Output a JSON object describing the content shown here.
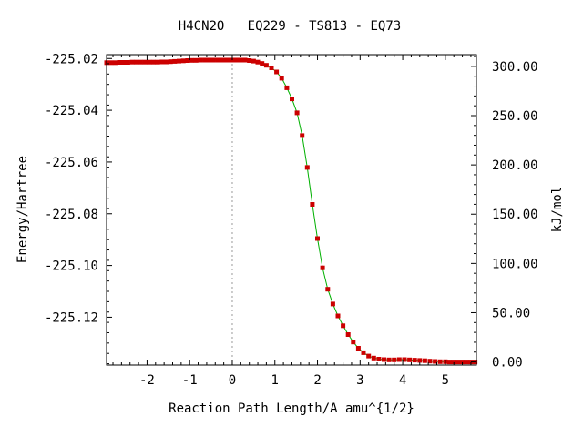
{
  "chart_data": {
    "type": "line",
    "title": "H4CN2O   EQ229 - TS813 - EQ73",
    "xlabel": "Reaction Path Length/A amu^{1/2}",
    "ylabel": "Energy/Hartree",
    "y2label": "kJ/mol",
    "xlim": [
      -2.95,
      5.73
    ],
    "ylim": [
      -225.1385,
      -225.0185
    ],
    "x_ticks": [
      -2,
      -1,
      0,
      1,
      2,
      3,
      4,
      5
    ],
    "x_tick_labels": [
      "-2",
      "-1",
      "0",
      "1",
      "2",
      "3",
      "4",
      "5"
    ],
    "y_ticks": [
      -225.02,
      -225.04,
      -225.06,
      -225.08,
      -225.1,
      -225.12
    ],
    "y_tick_labels": [
      "-225.02",
      "-225.04",
      "-225.06",
      "-225.08",
      "-225.10",
      "-225.12"
    ],
    "y2_ticks": [
      0,
      50,
      100,
      150,
      200,
      250,
      300
    ],
    "y2_tick_labels": [
      "0.00",
      "50.00",
      "100.00",
      "150.00",
      "200.00",
      "250.00",
      "300.00"
    ],
    "y2_reference_energy": -225.1373,
    "y2_conversion_kJ_per_Hartree": 2625.5,
    "ts_marker_x": 0,
    "grid": false,
    "line_color": "#00b000",
    "marker_color": "#cc0000",
    "ts_line_color": "#999999",
    "series": [
      {
        "x": [
          -2.95,
          -2.85,
          -2.75,
          -2.65,
          -2.55,
          -2.45,
          -2.35,
          -2.25,
          -2.15,
          -2.05,
          -1.95,
          -1.85,
          -1.75,
          -1.65,
          -1.55,
          -1.45,
          -1.35,
          -1.25,
          -1.15,
          -1.05,
          -0.95,
          -0.85,
          -0.75,
          -0.65,
          -0.55,
          -0.45,
          -0.35,
          -0.25,
          -0.15,
          -0.05,
          0.0,
          0.1,
          0.2,
          0.3,
          0.4,
          0.5,
          0.6,
          0.7,
          0.8,
          0.92,
          1.04,
          1.16,
          1.28,
          1.4,
          1.52,
          1.64,
          1.76,
          1.88,
          2.0,
          2.12,
          2.24,
          2.36,
          2.48,
          2.6,
          2.72,
          2.84,
          2.96,
          3.08,
          3.2,
          3.32,
          3.44,
          3.56,
          3.68,
          3.8,
          3.92,
          4.04,
          4.16,
          4.28,
          4.4,
          4.52,
          4.64,
          4.76,
          4.88,
          5.0,
          5.1,
          5.2,
          5.3,
          5.4,
          5.5,
          5.6,
          5.7
        ],
        "y": [
          -225.0216,
          -225.0216,
          -225.0216,
          -225.0215,
          -225.0215,
          -225.0215,
          -225.0214,
          -225.0214,
          -225.0214,
          -225.0214,
          -225.0214,
          -225.0214,
          -225.0214,
          -225.0213,
          -225.0213,
          -225.0212,
          -225.0211,
          -225.021,
          -225.0209,
          -225.0208,
          -225.0207,
          -225.0207,
          -225.0206,
          -225.0206,
          -225.0206,
          -225.0206,
          -225.0206,
          -225.0206,
          -225.0206,
          -225.0206,
          -225.0206,
          -225.0206,
          -225.0206,
          -225.0206,
          -225.0208,
          -225.021,
          -225.0214,
          -225.0219,
          -225.0226,
          -225.0236,
          -225.0252,
          -225.0276,
          -225.0313,
          -225.0356,
          -225.041,
          -225.0498,
          -225.0621,
          -225.0764,
          -225.0896,
          -225.1009,
          -225.1092,
          -225.1149,
          -225.1195,
          -225.1233,
          -225.1267,
          -225.1296,
          -225.132,
          -225.1337,
          -225.135,
          -225.1358,
          -225.1362,
          -225.1364,
          -225.1365,
          -225.1365,
          -225.1364,
          -225.1364,
          -225.1365,
          -225.1366,
          -225.1367,
          -225.1368,
          -225.137,
          -225.1371,
          -225.1372,
          -225.1372,
          -225.1373,
          -225.1373,
          -225.1373,
          -225.1373,
          -225.1373,
          -225.1373,
          -225.1373
        ]
      }
    ]
  }
}
